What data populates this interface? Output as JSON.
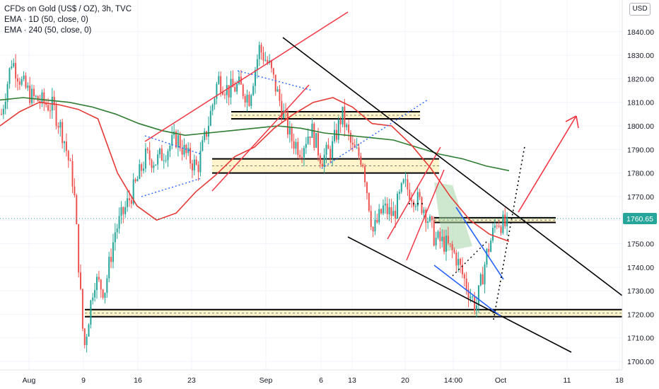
{
  "legend": {
    "title": "CFDs on Gold (US$ / OZ), 3h, TVC",
    "ema_fast": "EMA · 1D (50, close, 0)",
    "ema_slow": "EMA · 240 (50, close, 0)"
  },
  "currency_label": "USD",
  "price_badge": "1760.65",
  "colors": {
    "up": "#26a69a",
    "down": "#ef5350",
    "ema_fast": "#e53935",
    "ema_slow": "#2e7d32",
    "trendline_red": "#f23645",
    "trendline_black": "#000000",
    "dotted_blue": "#2962ff",
    "zone_fill": "#fff3c4",
    "price_line": "#26a69a",
    "price_badge_bg": "#26a69a"
  },
  "chart_data": {
    "type": "candlestick",
    "title": "CFDs on Gold (US$ / OZ), 3h, TVC",
    "xlabel": "",
    "ylabel": "",
    "ylim": [
      1695,
      1849
    ],
    "y_ticks": [
      1700,
      1710,
      1720,
      1730,
      1740,
      1750,
      1760,
      1770,
      1780,
      1790,
      1800,
      1810,
      1820,
      1830,
      1840
    ],
    "x_tick_labels": [
      "Aug",
      "9",
      "16",
      "23",
      "Sep",
      "6",
      "13",
      "20",
      "14:00",
      "Oct",
      "11",
      "18"
    ],
    "current_price": 1760.65,
    "grid": true,
    "series": [
      {
        "name": "EMA · 1D (50, close, 0)",
        "values": [
          1811,
          1812,
          1811,
          1810,
          1808,
          1805,
          1801,
          1798,
          1796,
          1797,
          1798,
          1799,
          1800,
          1799,
          1797,
          1796,
          1795,
          1794,
          1791,
          1788,
          1786,
          1783,
          1781
        ]
      },
      {
        "name": "EMA · 240 (50, close, 0)",
        "values": [
          1800,
          1806,
          1810,
          1809,
          1807,
          1803,
          1780,
          1766,
          1760,
          1763,
          1772,
          1779,
          1787,
          1791,
          1799,
          1805,
          1810,
          1812,
          1808,
          1801,
          1800,
          1792,
          1782,
          1770,
          1760,
          1754,
          1751
        ]
      }
    ],
    "horizontal_zones": [
      [
        1803,
        1806
      ],
      [
        1780,
        1786
      ],
      [
        1759,
        1761
      ],
      [
        1719,
        1722
      ]
    ],
    "price_path": [
      1805,
      1828,
      1818,
      1812,
      1810,
      1808,
      1796,
      1775,
      1705,
      1735,
      1730,
      1755,
      1765,
      1775,
      1787,
      1785,
      1790,
      1795,
      1787,
      1782,
      1800,
      1820,
      1815,
      1817,
      1812,
      1833,
      1825,
      1810,
      1795,
      1790,
      1799,
      1786,
      1790,
      1805,
      1790,
      1786,
      1755,
      1765,
      1762,
      1775,
      1770,
      1765,
      1752,
      1750,
      1745,
      1733,
      1723,
      1745,
      1760,
      1757
    ]
  }
}
